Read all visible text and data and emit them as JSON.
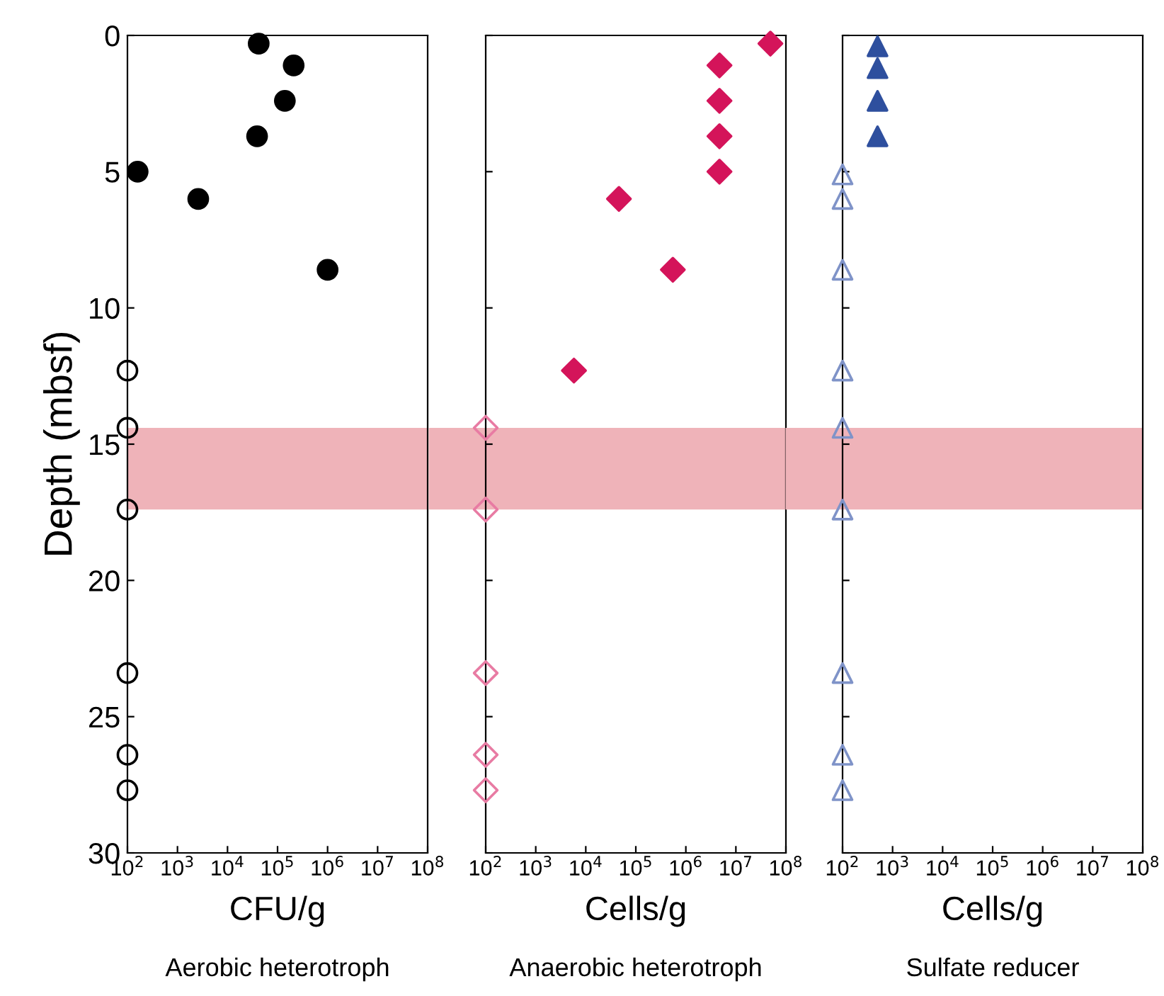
{
  "chart_data": [
    {
      "type": "scatter",
      "xlabel": "CFU/g",
      "ylabel": "Depth (mbsf)",
      "log": "x",
      "xlim": [
        100,
        100000000
      ],
      "xticks": [
        {
          "value": 100,
          "label": "10$^{2}$"
        },
        {
          "value": 1000,
          "label": "10$^{3}$"
        },
        {
          "value": 10000,
          "label": "10$^{4}$"
        },
        {
          "value": 100000,
          "label": "10$^{5}$"
        },
        {
          "value": 1000000,
          "label": "10$^{6}$"
        },
        {
          "value": 10000000,
          "label": "10$^{7}$"
        },
        {
          "value": 100000000,
          "label": "10$^{8}$"
        }
      ],
      "ylim": [
        30,
        0
      ],
      "yticks": [
        0,
        5,
        10,
        15,
        20,
        25,
        30
      ],
      "grid": false,
      "marker": "circle",
      "annotations": [
        "Aerobic heterotroph"
      ],
      "bands": [
        {
          "axis": "y",
          "from": 14.4,
          "to": 17.4,
          "color": "#efb3b9"
        }
      ],
      "series": [
        {
          "color": "#000000",
          "x": [
            42000,
            210000,
            140000,
            39000,
            160,
            2600,
            1000000
          ],
          "values": [
            0.3,
            1.1,
            2.4,
            3.7,
            5.0,
            6.0,
            8.6
          ]
        },
        {
          "color": "#000000",
          "marker": "circle",
          "x": [
            100,
            100,
            100,
            100,
            100,
            100
          ],
          "values": [
            12.3,
            14.4,
            17.4,
            23.4,
            26.4,
            27.7
          ]
        }
      ]
    },
    {
      "type": "scatter",
      "xlabel": "Cells/g",
      "log": "x",
      "xlim": [
        100,
        100000000
      ],
      "xticks": [
        {
          "value": 100,
          "label": "10$^{2}$"
        },
        {
          "value": 1000,
          "label": "10$^{3}$"
        },
        {
          "value": 10000,
          "label": "10$^{4}$"
        },
        {
          "value": 100000,
          "label": "10$^{5}$"
        },
        {
          "value": 1000000,
          "label": "10$^{6}$"
        },
        {
          "value": 10000000,
          "label": "10$^{7}$"
        },
        {
          "value": 100000000,
          "label": "10$^{8}$"
        }
      ],
      "ylim": [
        30,
        0
      ],
      "yticks": [
        0,
        5,
        10,
        15,
        20,
        25,
        30
      ],
      "tick_labels": "x",
      "grid": false,
      "marker": "diamond",
      "annotations": [
        "Anaerobic heterotroph"
      ],
      "bands": [
        {
          "axis": "y",
          "from": 14.4,
          "to": 17.4,
          "color": "#efb3b9"
        }
      ],
      "series": [
        {
          "color": "#d4145a",
          "x": [
            49000000,
            4700000,
            4700000,
            4700000,
            4700000,
            46000,
            550000,
            5800
          ],
          "values": [
            0.3,
            1.1,
            2.4,
            3.7,
            5.0,
            6.0,
            8.6,
            12.3
          ]
        },
        {
          "color": "#e87ba3",
          "marker": "diamond",
          "x": [
            100,
            100,
            100,
            100,
            100
          ],
          "values": [
            14.4,
            17.4,
            23.4,
            26.4,
            27.7
          ]
        }
      ]
    },
    {
      "type": "scatter",
      "xlabel": "Cells/g",
      "log": "x",
      "xlim": [
        100,
        100000000
      ],
      "xticks": [
        {
          "value": 100,
          "label": "10$^{2}$"
        },
        {
          "value": 1000,
          "label": "10$^{3}$"
        },
        {
          "value": 10000,
          "label": "10$^{4}$"
        },
        {
          "value": 100000,
          "label": "10$^{5}$"
        },
        {
          "value": 1000000,
          "label": "10$^{6}$"
        },
        {
          "value": 10000000,
          "label": "10$^{7}$"
        },
        {
          "value": 100000000,
          "label": "10$^{8}$"
        }
      ],
      "ylim": [
        30,
        0
      ],
      "yticks": [
        0,
        5,
        10,
        15,
        20,
        25,
        30
      ],
      "tick_labels": "x",
      "grid": false,
      "marker": "triangle",
      "annotations": [
        "Sulfate reducer"
      ],
      "bands": [
        {
          "axis": "y",
          "from": 14.4,
          "to": 17.4,
          "color": "#efb3b9"
        }
      ],
      "series": [
        {
          "color": "#2e4f9e",
          "x": [
            500,
            500,
            500,
            500
          ],
          "values": [
            0.4,
            1.2,
            2.4,
            3.7
          ]
        },
        {
          "color": "#7f93c8",
          "marker": "triangle",
          "x": [
            100,
            100,
            100,
            100,
            100,
            100,
            100,
            100,
            100
          ],
          "values": [
            5.1,
            6.0,
            8.6,
            12.3,
            14.4,
            17.4,
            23.4,
            26.4,
            27.7
          ]
        }
      ]
    }
  ]
}
